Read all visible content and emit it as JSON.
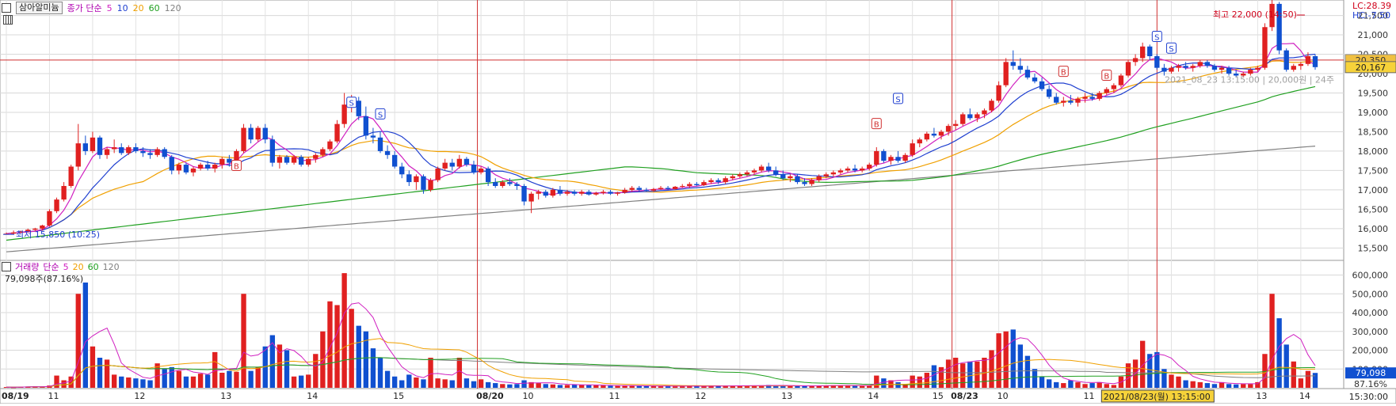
{
  "toolbar": {
    "stock_name": "삼아알미늄",
    "ma_label": "종가 단순",
    "ma_periods": [
      "5",
      "10",
      "20",
      "60",
      "120"
    ],
    "ma_colors": [
      "#d020c0",
      "#2040d0",
      "#f0a000",
      "#20a020",
      "#808080"
    ]
  },
  "price_panel": {
    "lc_label": "LC:28.39",
    "hc_label": "HC:-7.50",
    "high_annotation": "최고 22,000 (14:50)",
    "low_annotation": "최저 15,850 (10:25)",
    "current_price": "20,167",
    "hline_price_label": "20,350",
    "signal_text": "2021_08_23 13:15:00 | 20,000원 | 24주",
    "y_ticks": [
      "21,500",
      "21,000",
      "20,500",
      "20,000",
      "19,500",
      "19,000",
      "18,500",
      "18,000",
      "17,500",
      "17,000",
      "16,500",
      "16,000",
      "15,500"
    ]
  },
  "volume_panel": {
    "title": "거래량",
    "ma_label": "단순",
    "ma_periods": [
      "5",
      "20",
      "60",
      "120"
    ],
    "current_volume": "79,098주(87.16%)",
    "current_volume_box": "79,098",
    "ratio_box": "87.16%",
    "y_ticks": [
      "600,000",
      "500,000",
      "400,000",
      "300,000",
      "200,000",
      "100,000"
    ]
  },
  "x_axis": {
    "labels": [
      "08/19",
      "11",
      "12",
      "13",
      "14",
      "15",
      "08/20",
      "10",
      "11",
      "12",
      "13",
      "14",
      "15",
      "08/23",
      "10",
      "11",
      "12",
      "13",
      "14",
      "15"
    ],
    "cursor_label": "2021/08/23(월) 13:15:00",
    "time_label": "15:30:00"
  },
  "chart_data": {
    "type": "candlestick",
    "bar_interval": "5min",
    "sessions": [
      "08/19",
      "08/20",
      "08/23"
    ],
    "ylim": [
      15200,
      21900
    ],
    "volume_ylim": [
      0,
      640000
    ],
    "candles": [
      [
        15850,
        15900,
        15850,
        15870
      ],
      [
        15870,
        15950,
        15850,
        15900
      ],
      [
        15900,
        15950,
        15880,
        15930
      ],
      [
        15930,
        16000,
        15900,
        15970
      ],
      [
        15970,
        16020,
        15940,
        16000
      ],
      [
        16000,
        16100,
        15950,
        16080
      ],
      [
        16080,
        16500,
        16050,
        16450
      ],
      [
        16450,
        16800,
        16400,
        16750
      ],
      [
        16750,
        17200,
        16700,
        17100
      ],
      [
        17100,
        17650,
        17050,
        17600
      ],
      [
        17600,
        18700,
        17500,
        18200
      ],
      [
        18200,
        18400,
        17900,
        18000
      ],
      [
        18000,
        18500,
        17950,
        18350
      ],
      [
        18350,
        18400,
        17800,
        17900
      ],
      [
        17900,
        18100,
        17800,
        18050
      ],
      [
        18050,
        18300,
        17950,
        18100
      ],
      [
        18100,
        18200,
        17900,
        17950
      ],
      [
        17950,
        18150,
        17900,
        18100
      ],
      [
        18100,
        18200,
        17950,
        18000
      ],
      [
        18000,
        18100,
        17850,
        17950
      ],
      [
        17950,
        18050,
        17800,
        17900
      ],
      [
        17900,
        18100,
        17850,
        18050
      ],
      [
        18050,
        18100,
        17800,
        17850
      ],
      [
        17850,
        17900,
        17400,
        17500
      ],
      [
        17500,
        17700,
        17400,
        17650
      ],
      [
        17650,
        17700,
        17400,
        17450
      ],
      [
        17450,
        17600,
        17350,
        17550
      ],
      [
        17550,
        17700,
        17500,
        17650
      ],
      [
        17650,
        17750,
        17500,
        17550
      ],
      [
        17550,
        17700,
        17450,
        17650
      ],
      [
        17650,
        17850,
        17550,
        17800
      ],
      [
        17800,
        17900,
        17600,
        17700
      ],
      [
        17700,
        18050,
        17650,
        18000
      ],
      [
        18000,
        18700,
        17950,
        18600
      ],
      [
        18600,
        18700,
        18200,
        18300
      ],
      [
        18300,
        18650,
        18250,
        18600
      ],
      [
        18600,
        18700,
        18200,
        18300
      ],
      [
        18300,
        18400,
        17600,
        17700
      ],
      [
        17700,
        17900,
        17550,
        17850
      ],
      [
        17850,
        17900,
        17650,
        17700
      ],
      [
        17700,
        17900,
        17650,
        17850
      ],
      [
        17850,
        17900,
        17600,
        17650
      ],
      [
        17650,
        17850,
        17600,
        17800
      ],
      [
        17800,
        17950,
        17700,
        17900
      ],
      [
        17900,
        18100,
        17850,
        18050
      ],
      [
        18050,
        18300,
        18000,
        18250
      ],
      [
        18250,
        18800,
        18200,
        18700
      ],
      [
        18700,
        19500,
        18600,
        19200
      ],
      [
        19200,
        19450,
        19000,
        19300
      ],
      [
        19300,
        19400,
        18800,
        18900
      ],
      [
        18900,
        19150,
        18300,
        18400
      ],
      [
        18400,
        18600,
        18200,
        18350
      ],
      [
        18350,
        18500,
        17950,
        18000
      ],
      [
        18000,
        18150,
        17800,
        17900
      ],
      [
        17900,
        18000,
        17550,
        17600
      ],
      [
        17600,
        17700,
        17300,
        17400
      ],
      [
        17400,
        17500,
        17100,
        17200
      ],
      [
        17200,
        17400,
        17000,
        17350
      ],
      [
        17350,
        17400,
        16900,
        17000
      ],
      [
        17000,
        17300,
        16950,
        17250
      ],
      [
        17250,
        17600,
        17200,
        17550
      ],
      [
        17550,
        17800,
        17500,
        17700
      ],
      [
        17700,
        17800,
        17500,
        17600
      ],
      [
        17600,
        17900,
        17550,
        17800
      ],
      [
        17800,
        17850,
        17600,
        17650
      ],
      [
        17650,
        17750,
        17400,
        17450
      ],
      [
        17450,
        17600,
        17400,
        17550
      ],
      [
        17550,
        17600,
        17100,
        17200
      ],
      [
        17200,
        17300,
        17050,
        17100
      ],
      [
        17100,
        17250,
        17050,
        17200
      ],
      [
        17200,
        17300,
        17100,
        17150
      ],
      [
        17150,
        17200,
        17000,
        17100
      ],
      [
        17100,
        17150,
        16600,
        16700
      ],
      [
        16700,
        16950,
        16400,
        16900
      ],
      [
        16900,
        17000,
        16750,
        16950
      ],
      [
        16950,
        17000,
        16800,
        16850
      ],
      [
        16850,
        17050,
        16800,
        17000
      ],
      [
        17000,
        17100,
        16850,
        16900
      ],
      [
        16900,
        17000,
        16850,
        16950
      ],
      [
        16950,
        17000,
        16850,
        16900
      ],
      [
        16900,
        17000,
        16850,
        16950
      ],
      [
        16950,
        17000,
        16850,
        16880
      ],
      [
        16880,
        16950,
        16850,
        16920
      ],
      [
        16920,
        17000,
        16880,
        16950
      ],
      [
        16950,
        17000,
        16870,
        16900
      ],
      [
        16900,
        16950,
        16850,
        16930
      ],
      [
        16930,
        17050,
        16900,
        17000
      ],
      [
        17000,
        17100,
        16950,
        17050
      ],
      [
        17050,
        17100,
        16950,
        17000
      ],
      [
        17000,
        17050,
        16950,
        16980
      ],
      [
        16980,
        17050,
        16950,
        17020
      ],
      [
        17020,
        17100,
        17000,
        17050
      ],
      [
        17050,
        17100,
        17000,
        17020
      ],
      [
        17020,
        17100,
        17000,
        17080
      ],
      [
        17080,
        17150,
        17050,
        17100
      ],
      [
        17100,
        17200,
        17050,
        17150
      ],
      [
        17150,
        17200,
        17100,
        17120
      ],
      [
        17120,
        17250,
        17100,
        17200
      ],
      [
        17200,
        17300,
        17150,
        17250
      ],
      [
        17250,
        17300,
        17150,
        17200
      ],
      [
        17200,
        17350,
        17150,
        17300
      ],
      [
        17300,
        17400,
        17250,
        17350
      ],
      [
        17350,
        17450,
        17300,
        17400
      ],
      [
        17400,
        17500,
        17350,
        17450
      ],
      [
        17450,
        17550,
        17400,
        17500
      ],
      [
        17500,
        17650,
        17450,
        17600
      ],
      [
        17600,
        17700,
        17450,
        17500
      ],
      [
        17500,
        17600,
        17350,
        17400
      ],
      [
        17400,
        17500,
        17250,
        17300
      ],
      [
        17300,
        17400,
        17200,
        17350
      ],
      [
        17350,
        17400,
        17150,
        17200
      ],
      [
        17200,
        17300,
        17100,
        17150
      ],
      [
        17150,
        17300,
        17100,
        17250
      ],
      [
        17250,
        17400,
        17200,
        17350
      ],
      [
        17350,
        17450,
        17300,
        17400
      ],
      [
        17400,
        17500,
        17350,
        17450
      ],
      [
        17450,
        17550,
        17400,
        17500
      ],
      [
        17500,
        17600,
        17450,
        17550
      ],
      [
        17550,
        17650,
        17450,
        17500
      ],
      [
        17500,
        17600,
        17450,
        17550
      ],
      [
        17550,
        17700,
        17500,
        17650
      ],
      [
        17650,
        18100,
        17600,
        18000
      ],
      [
        18000,
        18050,
        17700,
        17750
      ],
      [
        17750,
        17900,
        17650,
        17850
      ],
      [
        17850,
        18000,
        17700,
        17750
      ],
      [
        17750,
        17950,
        17700,
        17900
      ],
      [
        17900,
        18300,
        17850,
        18200
      ],
      [
        18200,
        18350,
        18100,
        18300
      ],
      [
        18300,
        18500,
        18250,
        18450
      ],
      [
        18450,
        18600,
        18350,
        18400
      ],
      [
        18400,
        18550,
        18300,
        18500
      ],
      [
        18500,
        18700,
        18400,
        18650
      ],
      [
        18650,
        18800,
        18550,
        18700
      ],
      [
        18700,
        19000,
        18650,
        18950
      ],
      [
        18950,
        19100,
        18800,
        18850
      ],
      [
        18850,
        19000,
        18750,
        18950
      ],
      [
        18950,
        19100,
        18850,
        19050
      ],
      [
        19050,
        19350,
        19000,
        19300
      ],
      [
        19300,
        19800,
        19250,
        19700
      ],
      [
        19700,
        20400,
        19650,
        20300
      ],
      [
        20300,
        20600,
        20100,
        20200
      ],
      [
        20200,
        20400,
        20000,
        20100
      ],
      [
        20100,
        20200,
        19850,
        19900
      ],
      [
        19900,
        20000,
        19750,
        19800
      ],
      [
        19800,
        19900,
        19550,
        19600
      ],
      [
        19600,
        19700,
        19350,
        19400
      ],
      [
        19400,
        19500,
        19200,
        19250
      ],
      [
        19250,
        19400,
        19150,
        19300
      ],
      [
        19300,
        19450,
        19200,
        19250
      ],
      [
        19250,
        19400,
        19150,
        19350
      ],
      [
        19350,
        19500,
        19250,
        19400
      ],
      [
        19400,
        19500,
        19300,
        19350
      ],
      [
        19350,
        19550,
        19300,
        19500
      ],
      [
        19500,
        19650,
        19450,
        19600
      ],
      [
        19600,
        19750,
        19500,
        19700
      ],
      [
        19700,
        20000,
        19650,
        19950
      ],
      [
        19950,
        20350,
        19900,
        20300
      ],
      [
        20300,
        20500,
        20200,
        20400
      ],
      [
        20400,
        20800,
        20300,
        20700
      ],
      [
        20700,
        20750,
        20350,
        20450
      ],
      [
        20450,
        20500,
        20100,
        20150
      ],
      [
        20150,
        20250,
        19950,
        20050
      ],
      [
        20050,
        20200,
        20000,
        20150
      ],
      [
        20150,
        20250,
        20050,
        20200
      ],
      [
        20200,
        20300,
        20100,
        20150
      ],
      [
        20150,
        20250,
        20050,
        20200
      ],
      [
        20200,
        20350,
        20150,
        20300
      ],
      [
        20300,
        20350,
        20150,
        20200
      ],
      [
        20200,
        20250,
        20050,
        20100
      ],
      [
        20100,
        20200,
        20000,
        20150
      ],
      [
        20150,
        20200,
        19950,
        20000
      ],
      [
        20000,
        20100,
        19900,
        19950
      ],
      [
        19950,
        20050,
        19900,
        20000
      ],
      [
        20000,
        20150,
        19950,
        20100
      ],
      [
        20100,
        20200,
        20050,
        20150
      ],
      [
        20150,
        21300,
        20100,
        21200
      ],
      [
        21200,
        22000,
        21100,
        21800
      ],
      [
        21800,
        21850,
        20500,
        20600
      ],
      [
        20600,
        20650,
        20050,
        20100
      ],
      [
        20100,
        20250,
        20050,
        20200
      ],
      [
        20200,
        20300,
        20100,
        20250
      ],
      [
        20250,
        20550,
        20200,
        20450
      ],
      [
        20450,
        20500,
        20100,
        20167
      ]
    ],
    "volume": [
      4000,
      3000,
      5000,
      6000,
      8000,
      5000,
      12000,
      65000,
      40000,
      60000,
      500000,
      560000,
      220000,
      160000,
      150000,
      70000,
      60000,
      55000,
      50000,
      45000,
      40000,
      130000,
      100000,
      110000,
      90000,
      60000,
      60000,
      75000,
      70000,
      190000,
      80000,
      90000,
      85000,
      500000,
      90000,
      110000,
      220000,
      280000,
      230000,
      200000,
      60000,
      65000,
      70000,
      180000,
      300000,
      460000,
      440000,
      610000,
      420000,
      330000,
      300000,
      210000,
      160000,
      90000,
      60000,
      40000,
      70000,
      55000,
      45000,
      160000,
      50000,
      45000,
      40000,
      160000,
      50000,
      35000,
      45000,
      30000,
      25000,
      20000,
      18000,
      20000,
      40000,
      30000,
      25000,
      20000,
      18000,
      15000,
      15000,
      18000,
      15000,
      14000,
      13000,
      12000,
      11000,
      10000,
      12000,
      11000,
      10000,
      9000,
      9000,
      10000,
      9000,
      8000,
      8000,
      9000,
      10000,
      8000,
      9000,
      10000,
      12000,
      11000,
      10000,
      11000,
      12000,
      13000,
      15000,
      12000,
      11000,
      10000,
      9000,
      10000,
      11000,
      12000,
      13000,
      14000,
      13000,
      12000,
      11000,
      10000,
      12000,
      65000,
      50000,
      40000,
      30000,
      20000,
      65000,
      60000,
      80000,
      120000,
      110000,
      150000,
      160000,
      130000,
      140000,
      140000,
      160000,
      200000,
      290000,
      300000,
      310000,
      230000,
      170000,
      100000,
      60000,
      45000,
      30000,
      25000,
      40000,
      30000,
      20000,
      25000,
      30000,
      20000,
      15000,
      60000,
      130000,
      150000,
      250000,
      180000,
      190000,
      100000,
      70000,
      60000,
      40000,
      35000,
      30000,
      25000,
      20000,
      30000,
      20000,
      18000,
      20000,
      20000,
      30000,
      180000,
      500000,
      370000,
      230000,
      140000,
      50000,
      90000,
      79098
    ]
  }
}
